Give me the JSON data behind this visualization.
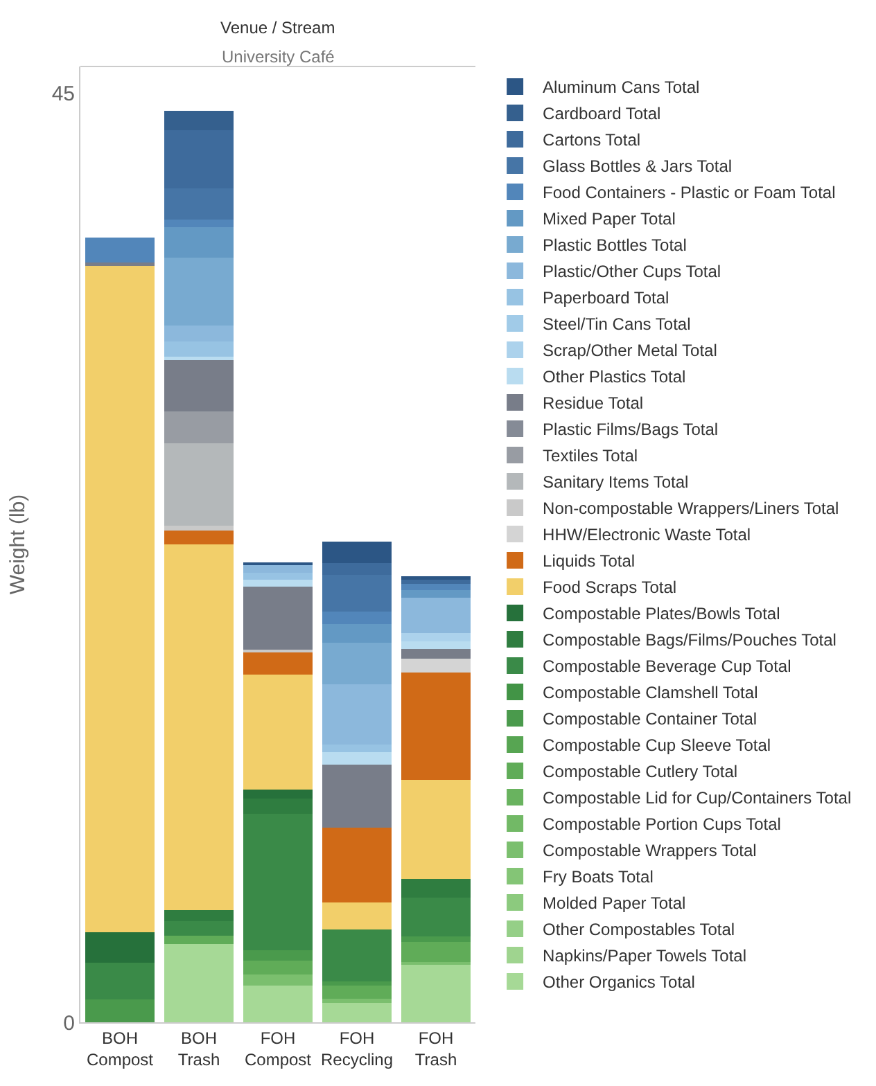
{
  "chart_data": {
    "type": "bar",
    "stacked": true,
    "title": "Venue / Stream",
    "subtitle": "University Café",
    "ylabel": "Weight (lb)",
    "categories": [
      "BOH Compost",
      "BOH Trash",
      "FOH Compost",
      "FOH Recycling",
      "FOH Trash"
    ],
    "ylim": [
      0,
      46.3
    ],
    "yticks": [
      0,
      45
    ],
    "legend": "right",
    "series": [
      {
        "name": "Other Organics Total",
        "color": "#a6d996",
        "values": [
          null,
          3.8,
          1.78,
          0.93,
          2.78
        ]
      },
      {
        "name": "Napkins/Paper Towels Total",
        "color": "#9fd48f",
        "values": [
          null,
          null,
          null,
          null,
          null
        ]
      },
      {
        "name": "Other Compostables Total",
        "color": "#95cf87",
        "values": [
          null,
          null,
          null,
          null,
          null
        ]
      },
      {
        "name": "Molded Paper Total",
        "color": "#8cca7e",
        "values": [
          null,
          null,
          null,
          null,
          null
        ]
      },
      {
        "name": "Fry Boats Total",
        "color": "#84c576",
        "values": [
          null,
          null,
          null,
          null,
          null
        ]
      },
      {
        "name": "Compostable Wrappers Total",
        "color": "#7bbf6e",
        "values": [
          null,
          null,
          0.55,
          0.22,
          0.15
        ]
      },
      {
        "name": "Compostable Portion Cups Total",
        "color": "#72b966",
        "values": [
          null,
          null,
          null,
          null,
          null
        ]
      },
      {
        "name": "Compostable Lid for Cup/Containers Total",
        "color": "#69b35f",
        "values": [
          null,
          null,
          null,
          null,
          null
        ]
      },
      {
        "name": "Compostable Cutlery Total",
        "color": "#60ac58",
        "values": [
          null,
          0.4,
          0.67,
          0.62,
          0.95
        ]
      },
      {
        "name": "Compostable Cup Sleeve Total",
        "color": "#57a552",
        "values": [
          null,
          null,
          null,
          null,
          null
        ]
      },
      {
        "name": "Compostable Container Total",
        "color": "#4a9a4c",
        "values": [
          1.1,
          null,
          0.5,
          0.22,
          0.29
        ]
      },
      {
        "name": "Compostable Clamshell Total",
        "color": "#429446",
        "values": [
          null,
          null,
          null,
          null,
          null
        ]
      },
      {
        "name": "Compostable Beverage Cup Total",
        "color": "#3a8a48",
        "values": [
          1.8,
          0.7,
          6.6,
          2.49,
          1.87
        ]
      },
      {
        "name": "Compostable Bags/Films/Pouches Total",
        "color": "#2f7d40",
        "values": [
          null,
          0.55,
          0.73,
          null,
          0.89
        ]
      },
      {
        "name": "Compostable Plates/Bowls Total",
        "color": "#26713b",
        "values": [
          1.45,
          null,
          0.45,
          null,
          null
        ]
      },
      {
        "name": "Food Scraps Total",
        "color": "#f2cf6a",
        "values": [
          32.3,
          17.7,
          5.55,
          1.33,
          4.8
        ]
      },
      {
        "name": "Liquids Total",
        "color": "#d06a17",
        "values": [
          null,
          0.67,
          1.09,
          3.62,
          5.2
        ]
      },
      {
        "name": "HHW/Electronic Waste Total",
        "color": "#d4d4d4",
        "values": [
          null,
          null,
          null,
          null,
          0.67
        ]
      },
      {
        "name": "Non-compostable Wrappers/Liners Total",
        "color": "#c9c9c9",
        "values": [
          null,
          0.22,
          0.13,
          null,
          null
        ]
      },
      {
        "name": "Sanitary Items Total",
        "color": "#b4b8ba",
        "values": [
          null,
          4.0,
          null,
          null,
          null
        ]
      },
      {
        "name": "Textiles Total",
        "color": "#989ca3",
        "values": [
          null,
          1.55,
          null,
          null,
          null
        ]
      },
      {
        "name": "Plastic Films/Bags Total",
        "color": "#858b96",
        "values": [
          null,
          null,
          null,
          null,
          null
        ]
      },
      {
        "name": "Residue Total",
        "color": "#787d89",
        "values": [
          0.15,
          2.5,
          3.05,
          3.05,
          0.47
        ]
      },
      {
        "name": "Other Plastics Total",
        "color": "#b9dcf0",
        "values": [
          null,
          0.15,
          0.33,
          0.6,
          0.38
        ]
      },
      {
        "name": "Scrap/Other Metal Total",
        "color": "#acd2ec",
        "values": [
          null,
          null,
          null,
          null,
          0.4
        ]
      },
      {
        "name": "Steel/Tin Cans Total",
        "color": "#a1cbe8",
        "values": [
          null,
          null,
          null,
          null,
          null
        ]
      },
      {
        "name": "Paperboard Total",
        "color": "#97c3e3",
        "values": [
          null,
          0.73,
          0.33,
          0.36,
          null
        ]
      },
      {
        "name": "Plastic/Other Cups Total",
        "color": "#8cb8dc",
        "values": [
          null,
          0.78,
          0.4,
          2.93,
          1.71
        ]
      },
      {
        "name": "Plastic Bottles Total",
        "color": "#78aad0",
        "values": [
          null,
          3.3,
          null,
          2.0,
          null
        ]
      },
      {
        "name": "Mixed Paper Total",
        "color": "#6399c4",
        "values": [
          null,
          1.45,
          null,
          0.93,
          0.38
        ]
      },
      {
        "name": "Food Containers - Plastic or Foam Total",
        "color": "#5286ba",
        "values": [
          1.2,
          0.4,
          null,
          0.58,
          0.29
        ]
      },
      {
        "name": "Glass Bottles & Jars Total",
        "color": "#4675a6",
        "values": [
          null,
          1.5,
          null,
          1.78,
          null
        ]
      },
      {
        "name": "Cartons Total",
        "color": "#3e6b9c",
        "values": [
          null,
          2.8,
          null,
          0.6,
          0.22
        ]
      },
      {
        "name": "Cardboard Total",
        "color": "#35608e",
        "values": [
          null,
          0.95,
          null,
          null,
          null
        ]
      },
      {
        "name": "Aluminum Cans Total",
        "color": "#2c5685",
        "values": [
          null,
          null,
          0.11,
          1.04,
          0.16
        ]
      }
    ]
  }
}
